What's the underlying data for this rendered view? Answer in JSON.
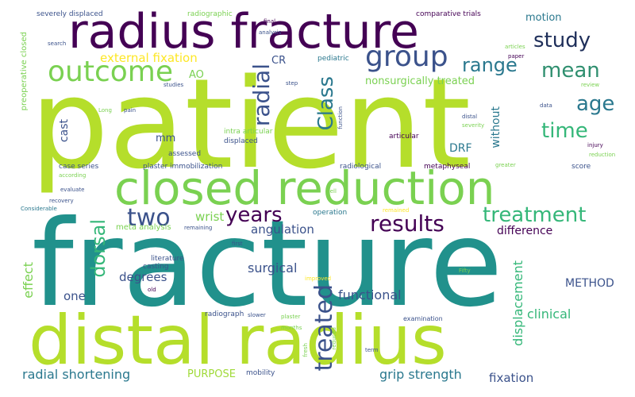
{
  "words": [
    {
      "text": "patient",
      "color": "#b5de2b"
    },
    {
      "text": "fracture",
      "color": "#21918c"
    },
    {
      "text": "distal radius",
      "color": "#b5de2b"
    },
    {
      "text": "radius fracture",
      "color": "#440154"
    },
    {
      "text": "closed reduction",
      "color": "#7ad151"
    },
    {
      "text": "outcome",
      "color": "#7ad151"
    },
    {
      "text": "group",
      "color": "#3b528b"
    },
    {
      "text": "study",
      "color": "#1f2f5a"
    },
    {
      "text": "mean",
      "color": "#2f8f6f"
    },
    {
      "text": "age",
      "color": "#2a788e"
    },
    {
      "text": "time",
      "color": "#35b779"
    },
    {
      "text": "range",
      "color": "#2a788e"
    },
    {
      "text": "years",
      "color": "#440154"
    },
    {
      "text": "two",
      "color": "#3b528b"
    },
    {
      "text": "results",
      "color": "#440154"
    },
    {
      "text": "treatment",
      "color": "#35b779"
    },
    {
      "text": "radial",
      "color": "#3b528b"
    },
    {
      "text": "Class",
      "color": "#2a788e"
    },
    {
      "text": "treated",
      "color": "#3b528b"
    },
    {
      "text": "dorsal",
      "color": "#35b779"
    },
    {
      "text": "external fixation",
      "color": "#fde725"
    },
    {
      "text": "nonsurgically treated",
      "color": "#7ad151"
    },
    {
      "text": "angulation",
      "color": "#3b528b"
    },
    {
      "text": "difference",
      "color": "#440154"
    },
    {
      "text": "wrist",
      "color": "#7ad151"
    },
    {
      "text": "degrees",
      "color": "#3b528b"
    },
    {
      "text": "surgical",
      "color": "#3b528b"
    },
    {
      "text": "functional",
      "color": "#3b528b"
    },
    {
      "text": "clinical",
      "color": "#35b779"
    },
    {
      "text": "displacement",
      "color": "#35b779"
    },
    {
      "text": "radial shortening",
      "color": "#2a788e"
    },
    {
      "text": "grip strength",
      "color": "#2a788e"
    },
    {
      "text": "fixation",
      "color": "#3b528b"
    },
    {
      "text": "METHOD",
      "color": "#3b528b"
    },
    {
      "text": "effect",
      "color": "#7ad151"
    },
    {
      "text": "one",
      "color": "#3b528b"
    },
    {
      "text": "PURPOSE",
      "color": "#a0da39"
    },
    {
      "text": "DRF",
      "color": "#2a788e"
    },
    {
      "text": "without",
      "color": "#2a788e"
    },
    {
      "text": "cast",
      "color": "#3b528b"
    },
    {
      "text": "mm",
      "color": "#3b528b"
    },
    {
      "text": "AO",
      "color": "#7ad151"
    },
    {
      "text": "CR",
      "color": "#3b528b"
    },
    {
      "text": "motion",
      "color": "#2a788e"
    },
    {
      "text": "severely displaced",
      "color": "#3b528b"
    },
    {
      "text": "radiographic",
      "color": "#7ad151"
    },
    {
      "text": "comparative trials",
      "color": "#440154"
    },
    {
      "text": "final",
      "color": "#440154"
    },
    {
      "text": "analysis",
      "color": "#3b528b"
    },
    {
      "text": "search",
      "color": "#3b528b"
    },
    {
      "text": "pediatric",
      "color": "#2a788e"
    },
    {
      "text": "articles",
      "color": "#7ad151"
    },
    {
      "text": "paper",
      "color": "#440154"
    },
    {
      "text": "preoperative closed",
      "color": "#7ad151"
    },
    {
      "text": "studies",
      "color": "#3b528b"
    },
    {
      "text": "step",
      "color": "#3b528b"
    },
    {
      "text": "review",
      "color": "#7ad151"
    },
    {
      "text": "data",
      "color": "#3b528b"
    },
    {
      "text": "Long",
      "color": "#7ad151"
    },
    {
      "text": "pain",
      "color": "#3b528b"
    },
    {
      "text": "function",
      "color": "#3b528b"
    },
    {
      "text": "distal",
      "color": "#3b528b"
    },
    {
      "text": "severity",
      "color": "#7ad151"
    },
    {
      "text": "injury",
      "color": "#440154"
    },
    {
      "text": "intra articular",
      "color": "#7ad151"
    },
    {
      "text": "articular",
      "color": "#440154"
    },
    {
      "text": "displaced",
      "color": "#3b528b"
    },
    {
      "text": "reduction",
      "color": "#7ad151"
    },
    {
      "text": "assessed",
      "color": "#3b528b"
    },
    {
      "text": "greater",
      "color": "#7ad151"
    },
    {
      "text": "case series",
      "color": "#3b528b"
    },
    {
      "text": "plaster immobilization",
      "color": "#3b528b"
    },
    {
      "text": "radiological",
      "color": "#3b528b"
    },
    {
      "text": "metaphyseal",
      "color": "#440154"
    },
    {
      "text": "according",
      "color": "#7ad151"
    },
    {
      "text": "score",
      "color": "#3b528b"
    },
    {
      "text": "evaluate",
      "color": "#3b528b"
    },
    {
      "text": "recovery",
      "color": "#3b528b"
    },
    {
      "text": "Considerable",
      "color": "#2a788e"
    },
    {
      "text": "well",
      "color": "#7ad151"
    },
    {
      "text": "operation",
      "color": "#2a788e"
    },
    {
      "text": "remained",
      "color": "#fde725"
    },
    {
      "text": "meta analysis",
      "color": "#7ad151"
    },
    {
      "text": "remaining",
      "color": "#3b528b"
    },
    {
      "text": "first",
      "color": "#3b528b"
    },
    {
      "text": "literature",
      "color": "#3b528b"
    },
    {
      "text": "casting",
      "color": "#3b528b"
    },
    {
      "text": "improved",
      "color": "#fde725"
    },
    {
      "text": "Fifty",
      "color": "#7ad151"
    },
    {
      "text": "old",
      "color": "#440154"
    },
    {
      "text": "radiograph",
      "color": "#3b528b"
    },
    {
      "text": "slower",
      "color": "#3b528b"
    },
    {
      "text": "plaster",
      "color": "#7ad151"
    },
    {
      "text": "examination",
      "color": "#3b528b"
    },
    {
      "text": "months",
      "color": "#7ad151"
    },
    {
      "text": "fresh",
      "color": "#7ad151"
    },
    {
      "text": "reduced",
      "color": "#7ad151"
    },
    {
      "text": "term",
      "color": "#3b528b"
    },
    {
      "text": "mobility",
      "color": "#3b528b"
    }
  ]
}
